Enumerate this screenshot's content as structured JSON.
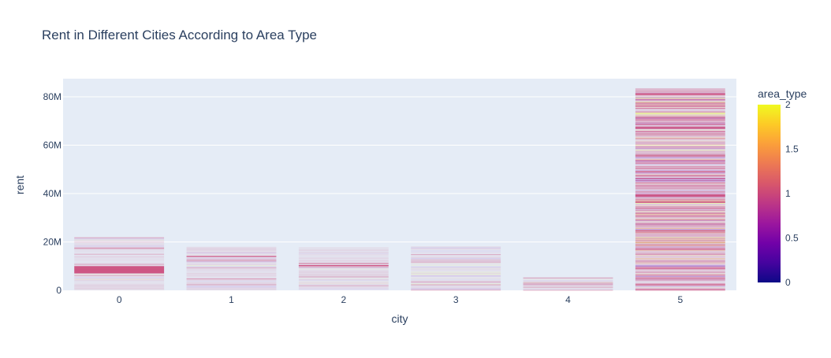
{
  "chart_data": {
    "type": "bar",
    "title": "Rent in Different Cities According to Area Type",
    "xlabel": "city",
    "ylabel": "rent",
    "categories": [
      "0",
      "1",
      "2",
      "3",
      "4",
      "5"
    ],
    "totals": [
      22000000,
      18000000,
      17800000,
      18200000,
      5500000,
      83500000
    ],
    "y_ticks": [
      {
        "value": 0,
        "label": "0"
      },
      {
        "value": 20000000,
        "label": "20M"
      },
      {
        "value": 40000000,
        "label": "40M"
      },
      {
        "value": 60000000,
        "label": "60M"
      },
      {
        "value": 80000000,
        "label": "80M"
      }
    ],
    "ylim": [
      0,
      87500000
    ],
    "grid": true,
    "colorbar": {
      "title": "area_type",
      "range": [
        0,
        2
      ],
      "ticks": [
        "0",
        "0.5",
        "1",
        "1.5",
        "2"
      ],
      "colorscale": [
        "#0d0887",
        "#46039f",
        "#7201a8",
        "#9c179e",
        "#bd3786",
        "#d8576b",
        "#ed7953",
        "#fb9f3a",
        "#fdca26",
        "#f0f921"
      ]
    },
    "highlight_bands": [
      {
        "city": 0,
        "from": 7000000,
        "to": 10000000,
        "area_type": 1
      },
      {
        "city": 1,
        "from": 13800000,
        "to": 14200000,
        "area_type": 1
      },
      {
        "city": 2,
        "from": 10000000,
        "to": 10400000,
        "area_type": 1
      },
      {
        "city": 5,
        "from": 38800000,
        "to": 39600000,
        "area_type": 1
      },
      {
        "city": 5,
        "from": 66800000,
        "to": 67500000,
        "area_type": 1
      },
      {
        "city": 5,
        "from": 80800000,
        "to": 81500000,
        "area_type": 1
      },
      {
        "city": 5,
        "from": 24300000,
        "to": 24800000,
        "area_type": 1
      }
    ]
  }
}
